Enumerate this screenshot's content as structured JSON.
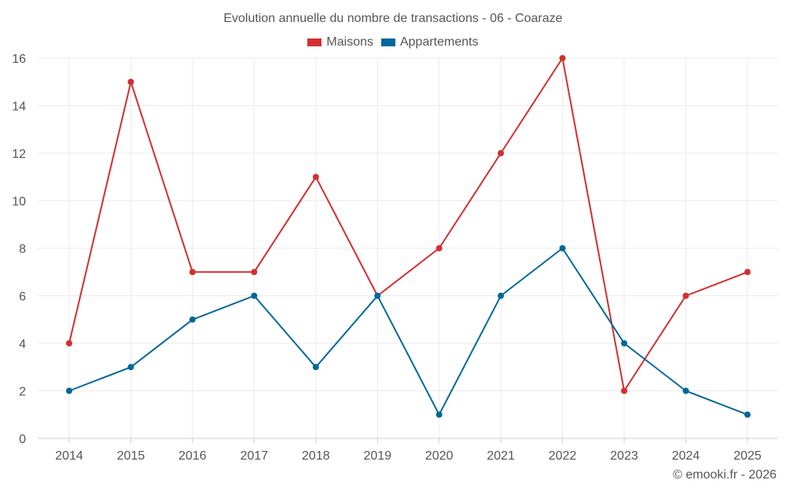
{
  "chart_data": {
    "type": "line",
    "title": "Evolution annuelle du nombre de transactions - 06 - Coaraze",
    "categories": [
      "2014",
      "2015",
      "2016",
      "2017",
      "2018",
      "2019",
      "2020",
      "2021",
      "2022",
      "2023",
      "2024",
      "2025"
    ],
    "series": [
      {
        "name": "Maisons",
        "color": "#d32f2f",
        "values": [
          4,
          15,
          7,
          7,
          11,
          6,
          8,
          12,
          16,
          2,
          6,
          7
        ]
      },
      {
        "name": "Appartements",
        "color": "#01689b",
        "values": [
          2,
          3,
          5,
          6,
          3,
          6,
          1,
          6,
          8,
          4,
          2,
          1
        ]
      }
    ],
    "ylim": [
      0,
      16
    ],
    "yticks": [
      "0",
      "2",
      "4",
      "6",
      "8",
      "10",
      "12",
      "14",
      "16"
    ],
    "xlabel": "",
    "ylabel": "",
    "grid": true,
    "legend_position": "top-center"
  },
  "credit": "© emooki.fr - 2026"
}
